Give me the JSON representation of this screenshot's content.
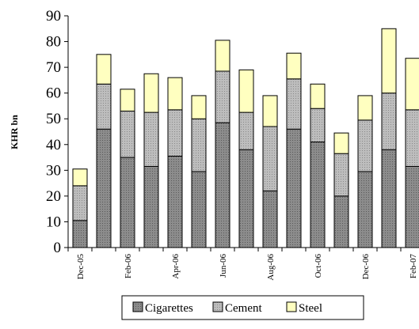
{
  "chart_data": {
    "type": "bar",
    "stacked": true,
    "ylabel": "KHR bn",
    "xlabel": "",
    "title": "",
    "ylim": [
      0,
      90
    ],
    "yticks": [
      0,
      10,
      20,
      30,
      40,
      50,
      60,
      70,
      80,
      90
    ],
    "grid": false,
    "legend_position": "bottom",
    "categories": [
      "Dec-05",
      "Jan-06",
      "Feb-06",
      "Mar-06",
      "Apr-06",
      "May-06",
      "Jun-06",
      "Jul-06",
      "Aug-06",
      "Sep-06",
      "Oct-06",
      "Nov-06",
      "Dec-06",
      "Jan-07",
      "Feb-07"
    ],
    "tick_labels": [
      "Dec-05",
      "",
      "Feb-06",
      "",
      "Apr-06",
      "",
      "Jun-06",
      "",
      "Aug-06",
      "",
      "Oct-06",
      "",
      "Dec-06",
      "",
      "Feb-07"
    ],
    "series": [
      {
        "name": "Cigarettes",
        "color": "#8c8c8c",
        "values": [
          10.5,
          46,
          35,
          31.5,
          35.5,
          29.5,
          48.5,
          38,
          22,
          46,
          41,
          20,
          29.5,
          38,
          31.5
        ]
      },
      {
        "name": "Cement",
        "color": "#b3b3b3",
        "values": [
          13.5,
          17.5,
          18,
          21,
          18,
          20.5,
          20,
          14.5,
          25,
          19.5,
          13,
          16.5,
          20,
          22,
          22
        ]
      },
      {
        "name": "Steel",
        "color": "#ffffc0",
        "values": [
          6.5,
          11.5,
          8.5,
          15,
          12.5,
          9,
          12,
          16.5,
          12,
          10,
          9.5,
          8,
          9.5,
          25,
          20
        ]
      }
    ]
  }
}
